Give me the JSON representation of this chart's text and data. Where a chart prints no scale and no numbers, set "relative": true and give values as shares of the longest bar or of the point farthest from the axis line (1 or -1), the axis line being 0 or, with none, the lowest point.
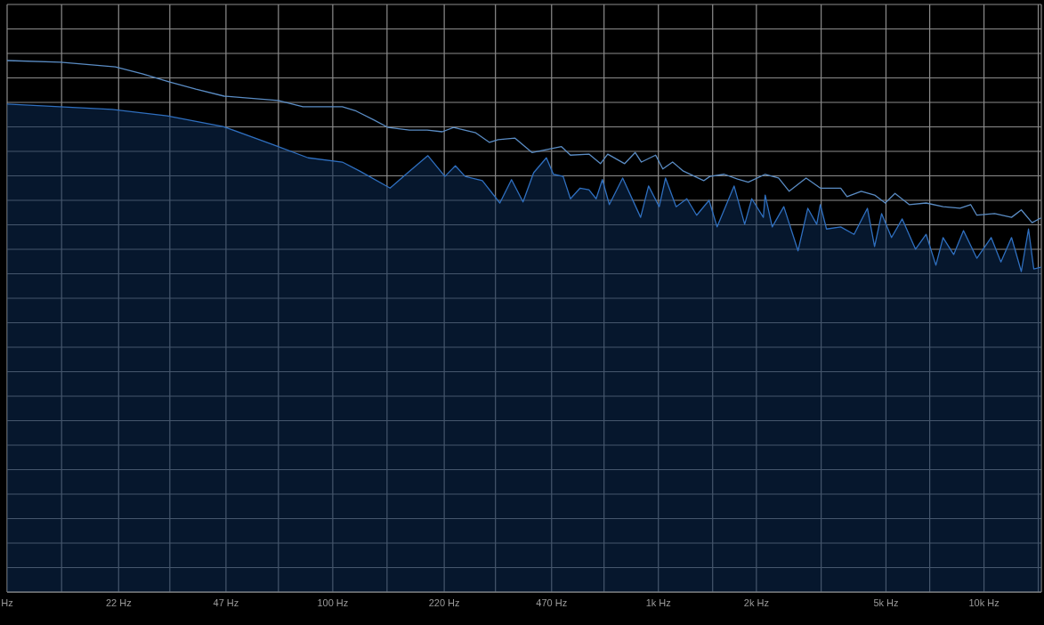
{
  "chart_data": {
    "type": "area",
    "relative": true,
    "grid": true,
    "legend": false,
    "marker": "none",
    "line_style": "solid",
    "log": "x",
    "xlim": [
      10,
      15000
    ],
    "xticks": [
      {
        "value": 10,
        "label": "Hz"
      },
      {
        "value": 14.7,
        "label": null
      },
      {
        "value": 22,
        "label": "22 Hz"
      },
      {
        "value": 31.6,
        "label": null
      },
      {
        "value": 47,
        "label": "47 Hz"
      },
      {
        "value": 68.1,
        "label": null
      },
      {
        "value": 100,
        "label": "100 Hz"
      },
      {
        "value": 146.8,
        "label": null
      },
      {
        "value": 220,
        "label": "220 Hz"
      },
      {
        "value": 316,
        "label": null
      },
      {
        "value": 470,
        "label": "470 Hz"
      },
      {
        "value": 681,
        "label": null
      },
      {
        "value": 1000,
        "label": "1k Hz"
      },
      {
        "value": 1468,
        "label": null
      },
      {
        "value": 2000,
        "label": "2k Hz"
      },
      {
        "value": 3162,
        "label": null
      },
      {
        "value": 5000,
        "label": "5k Hz"
      },
      {
        "value": 6813,
        "label": null
      },
      {
        "value": 10000,
        "label": "10k Hz"
      },
      {
        "value": 14678,
        "label": null
      }
    ],
    "series": [
      {
        "color": "#2f6fbf",
        "x": [
          10,
          21,
          31,
          46,
          66,
          84,
          107,
          121,
          150,
          170,
          196,
          221,
          238,
          255,
          288,
          326,
          354,
          384,
          414,
          453,
          476,
          510,
          537,
          575,
          612,
          644,
          673,
          707,
          777,
          882,
          933,
          1006,
          1052,
          1134,
          1223,
          1311,
          1431,
          1515,
          1708,
          1841,
          1936,
          2101,
          2128,
          2237,
          2428,
          2685,
          2877,
          3064,
          3143,
          3284,
          3631,
          3990,
          4385,
          4613,
          4849,
          5200,
          5608,
          6163,
          6642,
          7117,
          7487,
          8070,
          8650,
          9506,
          10520,
          11270,
          12150,
          13020,
          13700,
          14220,
          14960
        ],
        "values": [
          0.918,
          0.908,
          0.896,
          0.876,
          0.841,
          0.817,
          0.809,
          0.792,
          0.76,
          0.789,
          0.821,
          0.782,
          0.802,
          0.782,
          0.774,
          0.732,
          0.776,
          0.734,
          0.789,
          0.817,
          0.786,
          0.782,
          0.74,
          0.76,
          0.757,
          0.74,
          0.776,
          0.729,
          0.779,
          0.705,
          0.764,
          0.725,
          0.779,
          0.725,
          0.74,
          0.709,
          0.737,
          0.687,
          0.764,
          0.692,
          0.74,
          0.705,
          0.747,
          0.687,
          0.725,
          0.642,
          0.722,
          0.692,
          0.729,
          0.683,
          0.687,
          0.673,
          0.722,
          0.65,
          0.712,
          0.667,
          0.702,
          0.645,
          0.673,
          0.615,
          0.667,
          0.635,
          0.68,
          0.628,
          0.667,
          0.621,
          0.667,
          0.603,
          0.683,
          0.608,
          0.611
        ]
      },
      {
        "type": "line",
        "color": "#5a8cc4",
        "x": [
          10,
          14.6,
          21.5,
          26,
          31.4,
          38,
          46.4,
          68,
          81,
          92,
          107,
          118,
          134,
          148,
          172,
          195,
          217,
          235,
          259,
          275,
          303,
          322,
          363,
          409,
          504,
          537,
          612,
          664,
          699,
          788,
          849,
          887,
          981,
          1032,
          1106,
          1193,
          1378,
          1440,
          1593,
          1751,
          1888,
          2128,
          2339,
          2522,
          2842,
          3143,
          3631,
          3796,
          4198,
          4613,
          4974,
          5330,
          5893,
          6642,
          7487,
          8439,
          9099,
          9506,
          10780,
          12150,
          13020,
          14050,
          14960
        ],
        "values": [
          1,
          0.997,
          0.988,
          0.975,
          0.96,
          0.946,
          0.933,
          0.925,
          0.913,
          0.913,
          0.913,
          0.905,
          0.888,
          0.874,
          0.869,
          0.869,
          0.866,
          0.874,
          0.868,
          0.864,
          0.846,
          0.851,
          0.854,
          0.827,
          0.838,
          0.822,
          0.824,
          0.806,
          0.824,
          0.806,
          0.827,
          0.809,
          0.822,
          0.796,
          0.809,
          0.792,
          0.774,
          0.782,
          0.786,
          0.777,
          0.771,
          0.786,
          0.779,
          0.754,
          0.779,
          0.76,
          0.76,
          0.744,
          0.754,
          0.747,
          0.732,
          0.75,
          0.729,
          0.732,
          0.725,
          0.722,
          0.729,
          0.709,
          0.712,
          0.705,
          0.719,
          0.695,
          0.704
        ]
      }
    ]
  }
}
